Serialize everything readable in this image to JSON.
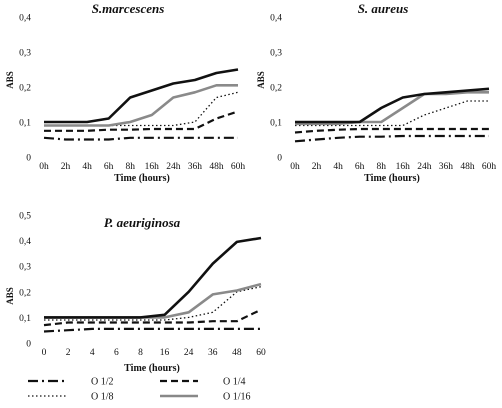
{
  "chart_data": [
    {
      "type": "line",
      "title": "S.marcescens",
      "xlabel": "Time (hours)",
      "ylabel": "ABS",
      "ylim": [
        0,
        0.4
      ],
      "yticks": [
        "0",
        "0,1",
        "0,2",
        "0,3",
        "0,4"
      ],
      "categories": [
        "0h",
        "2h",
        "4h",
        "6h",
        "8h",
        "16h",
        "24h",
        "36h",
        "48h",
        "60h"
      ],
      "series": [
        {
          "name": "O 1/2",
          "values": [
            0.055,
            0.05,
            0.05,
            0.05,
            0.055,
            0.055,
            0.055,
            0.055,
            0.055,
            0.055
          ]
        },
        {
          "name": "O 1/4",
          "values": [
            0.075,
            0.075,
            0.075,
            0.078,
            0.078,
            0.08,
            0.08,
            0.08,
            0.11,
            0.13
          ]
        },
        {
          "name": "O 1/8",
          "values": [
            0.09,
            0.09,
            0.09,
            0.09,
            0.09,
            0.09,
            0.09,
            0.1,
            0.17,
            0.185
          ]
        },
        {
          "name": "O 1/16",
          "values": [
            0.09,
            0.09,
            0.09,
            0.09,
            0.1,
            0.12,
            0.17,
            0.185,
            0.205,
            0.205
          ]
        },
        {
          "name": "",
          "values": [
            0.1,
            0.1,
            0.1,
            0.11,
            0.17,
            0.19,
            0.21,
            0.22,
            0.24,
            0.25
          ]
        }
      ]
    },
    {
      "type": "line",
      "title": "S. aureus",
      "xlabel": "Time (hours)",
      "ylabel": "ABS",
      "ylim": [
        0,
        0.4
      ],
      "yticks": [
        "0",
        "0,1",
        "0,2",
        "0,3",
        "0,4"
      ],
      "categories": [
        "0h",
        "2h",
        "4h",
        "6h",
        "8h",
        "16h",
        "24h",
        "36h",
        "48h",
        "60h"
      ],
      "series": [
        {
          "name": "O 1/2",
          "values": [
            0.045,
            0.05,
            0.055,
            0.058,
            0.058,
            0.06,
            0.06,
            0.06,
            0.06,
            0.06
          ]
        },
        {
          "name": "O 1/4",
          "values": [
            0.07,
            0.075,
            0.078,
            0.08,
            0.08,
            0.08,
            0.08,
            0.08,
            0.08,
            0.08
          ]
        },
        {
          "name": "O 1/8",
          "values": [
            0.09,
            0.09,
            0.09,
            0.09,
            0.09,
            0.09,
            0.12,
            0.14,
            0.16,
            0.16
          ]
        },
        {
          "name": "O 1/16",
          "values": [
            0.095,
            0.095,
            0.095,
            0.1,
            0.1,
            0.14,
            0.18,
            0.18,
            0.185,
            0.185
          ]
        },
        {
          "name": "",
          "values": [
            0.1,
            0.1,
            0.1,
            0.1,
            0.14,
            0.17,
            0.18,
            0.185,
            0.19,
            0.195
          ]
        }
      ]
    },
    {
      "type": "line",
      "title": "P. aeuriginosa",
      "xlabel": "Time (hours)",
      "ylabel": "ABS",
      "ylim": [
        0,
        0.5
      ],
      "yticks": [
        "0",
        "0,1",
        "0,2",
        "0,3",
        "0,4",
        "0,5"
      ],
      "categories": [
        "0",
        "2",
        "4",
        "6",
        "8",
        "16",
        "24",
        "36",
        "48",
        "60"
      ],
      "series": [
        {
          "name": "O 1/2",
          "values": [
            0.045,
            0.05,
            0.055,
            0.055,
            0.055,
            0.055,
            0.055,
            0.055,
            0.055,
            0.055
          ]
        },
        {
          "name": "O 1/4",
          "values": [
            0.07,
            0.08,
            0.08,
            0.08,
            0.08,
            0.08,
            0.08,
            0.085,
            0.085,
            0.13
          ]
        },
        {
          "name": "O 1/8",
          "values": [
            0.09,
            0.09,
            0.09,
            0.09,
            0.09,
            0.09,
            0.1,
            0.12,
            0.2,
            0.22
          ]
        },
        {
          "name": "O 1/16",
          "values": [
            0.1,
            0.1,
            0.1,
            0.1,
            0.1,
            0.1,
            0.12,
            0.19,
            0.205,
            0.23
          ]
        },
        {
          "name": "",
          "values": [
            0.1,
            0.1,
            0.1,
            0.1,
            0.1,
            0.11,
            0.2,
            0.31,
            0.395,
            0.41
          ]
        }
      ]
    }
  ],
  "legend": [
    {
      "label": "O 1/2",
      "style": "dashdot",
      "color": "#111111"
    },
    {
      "label": "O 1/4",
      "style": "dashed",
      "color": "#111111"
    },
    {
      "label": "O 1/8",
      "style": "dotted",
      "color": "#111111"
    },
    {
      "label": "O 1/16",
      "style": "solid",
      "color": "#888888"
    }
  ]
}
